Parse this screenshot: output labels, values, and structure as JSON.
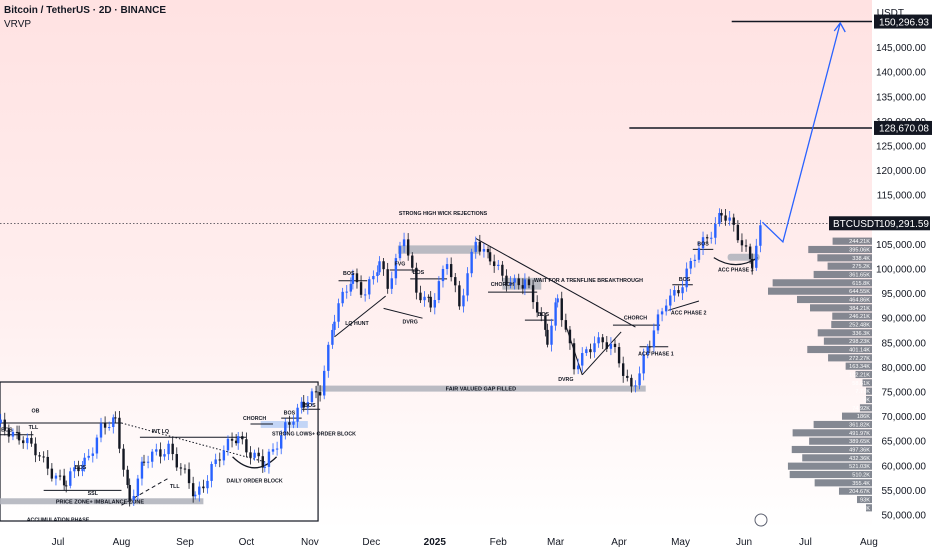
{
  "header": {
    "title": "Bitcoin / TetherUS · 2D · BINANCE",
    "indicator": "VRVP",
    "currency": "USDT"
  },
  "colors": {
    "bull": "#2962ff",
    "bear": "#131722",
    "zone": "#b2b5be",
    "lastBg": "#131722",
    "bgTop": "#ffe6e6",
    "vrvp": "#6f7480"
  },
  "chart_data": {
    "type": "candlestick",
    "symbol": "BTCUSDT",
    "last_price": "109,291.59",
    "ylim": [
      48500,
      152500
    ],
    "y_ticks": [
      "50,000.00",
      "55,000.00",
      "60,000.00",
      "65,000.00",
      "70,000.00",
      "75,000.00",
      "80,000.00",
      "85,000.00",
      "90,000.00",
      "95,000.00",
      "100,000.00",
      "105,000.00",
      "110,000.00",
      "115,000.00",
      "120,000.00",
      "125,000.00",
      "130,000.00",
      "135,000.00",
      "140,000.00",
      "145,000.00"
    ],
    "x_ticks": [
      {
        "label": "Jul",
        "date": "2024-07-01"
      },
      {
        "label": "Aug",
        "date": "2024-08-01"
      },
      {
        "label": "Sep",
        "date": "2024-09-01"
      },
      {
        "label": "Oct",
        "date": "2024-10-01"
      },
      {
        "label": "Nov",
        "date": "2024-11-01"
      },
      {
        "label": "Dec",
        "date": "2024-12-01"
      },
      {
        "label": "2025",
        "date": "2025-01-01"
      },
      {
        "label": "Feb",
        "date": "2025-02-01"
      },
      {
        "label": "Mar",
        "date": "2025-03-01"
      },
      {
        "label": "Apr",
        "date": "2025-04-01"
      },
      {
        "label": "May",
        "date": "2025-05-01"
      },
      {
        "label": "Jun",
        "date": "2025-06-01"
      },
      {
        "label": "Jul",
        "date": "2025-07-01"
      },
      {
        "label": "Aug",
        "date": "2025-08-01"
      }
    ],
    "price_path": [
      [
        "2024-06-01",
        68000
      ],
      [
        "2024-06-12",
        66500
      ],
      [
        "2024-06-24",
        60500
      ],
      [
        "2024-07-05",
        56500
      ],
      [
        "2024-07-14",
        60800
      ],
      [
        "2024-07-22",
        67800
      ],
      [
        "2024-07-29",
        68500
      ],
      [
        "2024-08-05",
        53500
      ],
      [
        "2024-08-12",
        60500
      ],
      [
        "2024-08-24",
        64200
      ],
      [
        "2024-09-06",
        53500
      ],
      [
        "2024-09-14",
        60000
      ],
      [
        "2024-09-27",
        66000
      ],
      [
        "2024-10-10",
        59500
      ],
      [
        "2024-10-20",
        68500
      ],
      [
        "2024-10-29",
        72000
      ],
      [
        "2024-11-06",
        76000
      ],
      [
        "2024-11-13",
        90000
      ],
      [
        "2024-11-22",
        98500
      ],
      [
        "2024-11-28",
        95500
      ],
      [
        "2024-12-05",
        100500
      ],
      [
        "2024-12-09",
        96500
      ],
      [
        "2024-12-17",
        107500
      ],
      [
        "2024-12-23",
        94500
      ],
      [
        "2024-12-30",
        93000
      ],
      [
        "2025-01-07",
        102000
      ],
      [
        "2025-01-13",
        91500
      ],
      [
        "2025-01-21",
        106500
      ],
      [
        "2025-01-28",
        102000
      ],
      [
        "2025-02-03",
        97800
      ],
      [
        "2025-02-14",
        97500
      ],
      [
        "2025-02-25",
        86000
      ],
      [
        "2025-03-02",
        94500
      ],
      [
        "2025-03-10",
        79500
      ],
      [
        "2025-03-20",
        86000
      ],
      [
        "2025-03-28",
        84000
      ],
      [
        "2025-04-07",
        76000
      ],
      [
        "2025-04-16",
        84500
      ],
      [
        "2025-04-24",
        94000
      ],
      [
        "2025-05-02",
        97000
      ],
      [
        "2025-05-10",
        104000
      ],
      [
        "2025-05-21",
        111500
      ],
      [
        "2025-06-05",
        102000
      ],
      [
        "2025-06-10",
        109291.59
      ]
    ],
    "levels": [
      {
        "label": "150,296.93",
        "price": 150296.93,
        "from": "2025-05-26"
      },
      {
        "label": "128,670.08",
        "price": 128670.08,
        "from": "2025-04-06"
      }
    ],
    "projection": {
      "from": [
        "2025-06-20",
        105500
      ],
      "to": [
        "2025-07-18",
        150000
      ]
    },
    "zones": [
      {
        "label": "FAIR VALUED GAP FILLED",
        "from": "2024-11-04",
        "to": "2025-04-14",
        "low": 75200,
        "high": 76300
      },
      {
        "label": "STRONG HIGH WICK REJECTIONS",
        "from": "2024-12-14",
        "to": "2025-01-23",
        "low": 103100,
        "high": 104800
      },
      {
        "label": "PRICE ZONE+ IMBALANCE ZONE",
        "from": "2024-06-01",
        "to": "2024-09-10",
        "low": 52300,
        "high": 53400
      },
      {
        "label": "",
        "from": "2024-10-08",
        "to": "2024-10-31",
        "low": 67700,
        "high": 69100
      },
      {
        "label": "",
        "from": "2025-02-03",
        "to": "2025-02-22",
        "low": 95800,
        "high": 98200
      }
    ],
    "annotations": [
      {
        "text": "ACCUMULATION PHASE",
        "date": "2024-07-01",
        "price": 48700
      },
      {
        "text": "DAILY ORDER BLOCK",
        "date": "2024-10-05",
        "price": 56600
      },
      {
        "text": "STRONG LOWS+ ORDER BLOCK",
        "date": "2024-11-03",
        "price": 66200
      },
      {
        "text": "CHORCH",
        "date": "2024-10-05",
        "price": 69300
      },
      {
        "text": "BOS",
        "date": "2024-10-22",
        "price": 70400
      },
      {
        "text": "BOS",
        "date": "2024-11-01",
        "price": 72000
      },
      {
        "text": "BOS",
        "date": "2024-06-06",
        "price": 67000
      },
      {
        "text": "OB",
        "date": "2024-06-20",
        "price": 70800
      },
      {
        "text": "TLL",
        "date": "2024-06-19",
        "price": 67500
      },
      {
        "text": "INT LQ",
        "date": "2024-08-20",
        "price": 66700
      },
      {
        "text": "BOS",
        "date": "2024-07-12",
        "price": 59400
      },
      {
        "text": "SSL",
        "date": "2024-07-18",
        "price": 54100
      },
      {
        "text": "TLL",
        "date": "2024-08-27",
        "price": 55500
      },
      {
        "text": "BOS",
        "date": "2024-11-20",
        "price": 98800
      },
      {
        "text": "LQ HUNT",
        "date": "2024-11-24",
        "price": 88600
      },
      {
        "text": "FVG",
        "date": "2024-12-15",
        "price": 100700
      },
      {
        "text": "BOS",
        "date": "2024-12-24",
        "price": 99000
      },
      {
        "text": "DVRG",
        "date": "2024-12-20",
        "price": 88900
      },
      {
        "text": "CHORCH",
        "date": "2025-02-03",
        "price": 96500
      },
      {
        "text": "BOS",
        "date": "2025-02-23",
        "price": 90400
      },
      {
        "text": "WAIT FOR A TRENFLINE BREAKTHROUGH",
        "date": "2025-03-17",
        "price": 97400
      },
      {
        "text": "DVRG",
        "date": "2025-03-06",
        "price": 77200
      },
      {
        "text": "CHORCH",
        "date": "2025-04-09",
        "price": 89700
      },
      {
        "text": "ACC PHASE 1",
        "date": "2025-04-19",
        "price": 82400
      },
      {
        "text": "ACC PHASE 2",
        "date": "2025-05-05",
        "price": 90800
      },
      {
        "text": "BOS",
        "date": "2025-05-03",
        "price": 97600
      },
      {
        "text": "BOS",
        "date": "2025-05-12",
        "price": 104800
      },
      {
        "text": "ACC PHASE 3",
        "date": "2025-05-28",
        "price": 99500
      },
      {
        "text": "STRONG HIGH WICK REJECTIONS",
        "date": "2025-01-05",
        "price": 111000
      }
    ],
    "vrvp_labels": [
      "244.21K",
      "395.06K",
      "338.4K",
      "275.2K",
      "361.65K",
      "615.8K",
      "644.55K",
      "464.86K",
      "384.21K",
      "246.21K",
      "252.48K",
      "336.3K",
      "298.23K",
      "401.14K",
      "272.27K",
      "163.34K",
      "102.21K",
      "58.61K",
      "7.77K",
      "5K",
      "74.92K",
      "186K",
      "361.82K",
      "491.97K",
      "389.65K",
      "497.36K",
      "432.36K",
      "521.03K",
      "510.2K",
      "355.4K",
      "204.67K",
      "93K",
      "5K"
    ]
  }
}
